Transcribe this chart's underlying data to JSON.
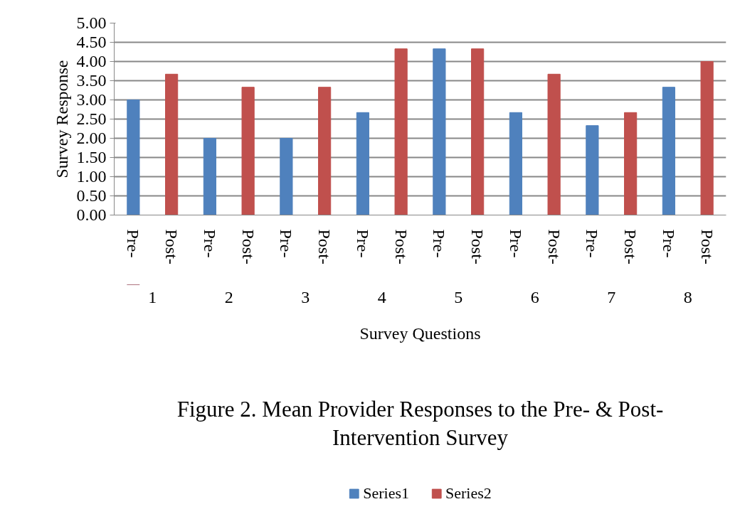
{
  "chart_data": {
    "type": "bar",
    "title": "Figure 2. Mean Provider Responses to the Pre- & Post-Intervention Survey",
    "xlabel": "Survey Questions",
    "ylabel": "Survey Response",
    "categories": [
      "Pre-",
      "Post-",
      "Pre-",
      "Post-",
      "Pre-",
      "Post-",
      "Pre-",
      "Post-",
      "Pre-",
      "Post-",
      "Pre-",
      "Post-",
      "Pre-",
      "Post-",
      "Pre-",
      "Post-"
    ],
    "annotations": [
      "1",
      "2",
      "3",
      "4",
      "5",
      "6",
      "7",
      "8"
    ],
    "series": [
      {
        "name": "Series1",
        "color": "#4f81bd",
        "values": [
          3.0,
          null,
          2.0,
          null,
          2.0,
          null,
          2.67,
          null,
          4.33,
          null,
          2.67,
          null,
          2.33,
          null,
          3.33,
          null
        ]
      },
      {
        "name": "Series2",
        "color": "#c0504d",
        "values": [
          null,
          3.67,
          null,
          3.33,
          null,
          3.33,
          null,
          4.33,
          null,
          4.33,
          null,
          3.67,
          null,
          2.67,
          null,
          4.0
        ]
      }
    ],
    "ylim": [
      0,
      5
    ],
    "yticks": [
      {
        "value": 0,
        "label": "0.00"
      },
      {
        "value": 0.5,
        "label": "0.50"
      },
      {
        "value": 1,
        "label": "1.00"
      },
      {
        "value": 1.5,
        "label": "1.50"
      },
      {
        "value": 2,
        "label": "2.00"
      },
      {
        "value": 2.5,
        "label": "2.50"
      },
      {
        "value": 3,
        "label": "3.00"
      },
      {
        "value": 3.5,
        "label": "3.50"
      },
      {
        "value": 4,
        "label": "4.00"
      },
      {
        "value": 4.5,
        "label": "4.50"
      },
      {
        "value": 5,
        "label": "5.00"
      }
    ],
    "grid": "y",
    "legend": "bottom"
  }
}
